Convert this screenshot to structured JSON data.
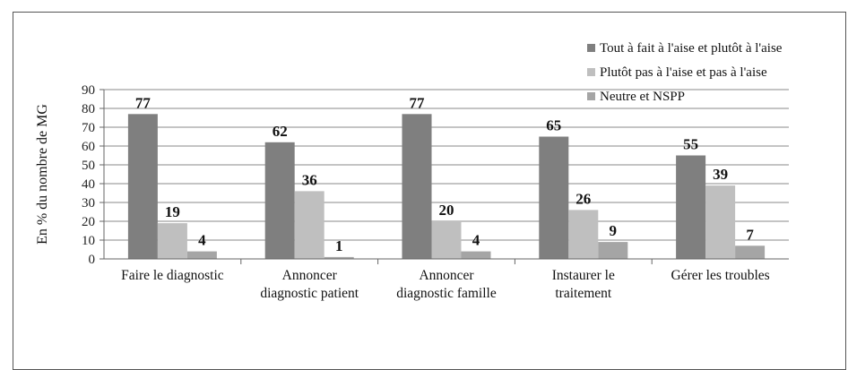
{
  "chart_data": {
    "type": "bar",
    "ylabel": "En % du nombre de MG",
    "ylim": [
      0,
      90
    ],
    "yticks": [
      0,
      10,
      20,
      30,
      40,
      50,
      60,
      70,
      80,
      90
    ],
    "grid": true,
    "legend_position": "top-right",
    "categories": [
      [
        "Faire le diagnostic"
      ],
      [
        "Annoncer",
        "diagnostic patient"
      ],
      [
        "Annoncer",
        "diagnostic famille"
      ],
      [
        "Instaurer le",
        "traitement"
      ],
      [
        "Gérer les troubles"
      ]
    ],
    "series": [
      {
        "name": "Tout à fait à l'aise et plutôt à l'aise",
        "color": "#7f7f7f",
        "values": [
          77,
          62,
          77,
          65,
          55
        ]
      },
      {
        "name": "Plutôt pas à l'aise et  pas à l'aise",
        "color": "#bfbfbf",
        "values": [
          19,
          36,
          20,
          26,
          39
        ]
      },
      {
        "name": "Neutre et NSPP",
        "color": "#a5a5a5",
        "values": [
          4,
          1,
          4,
          9,
          7
        ]
      }
    ]
  }
}
